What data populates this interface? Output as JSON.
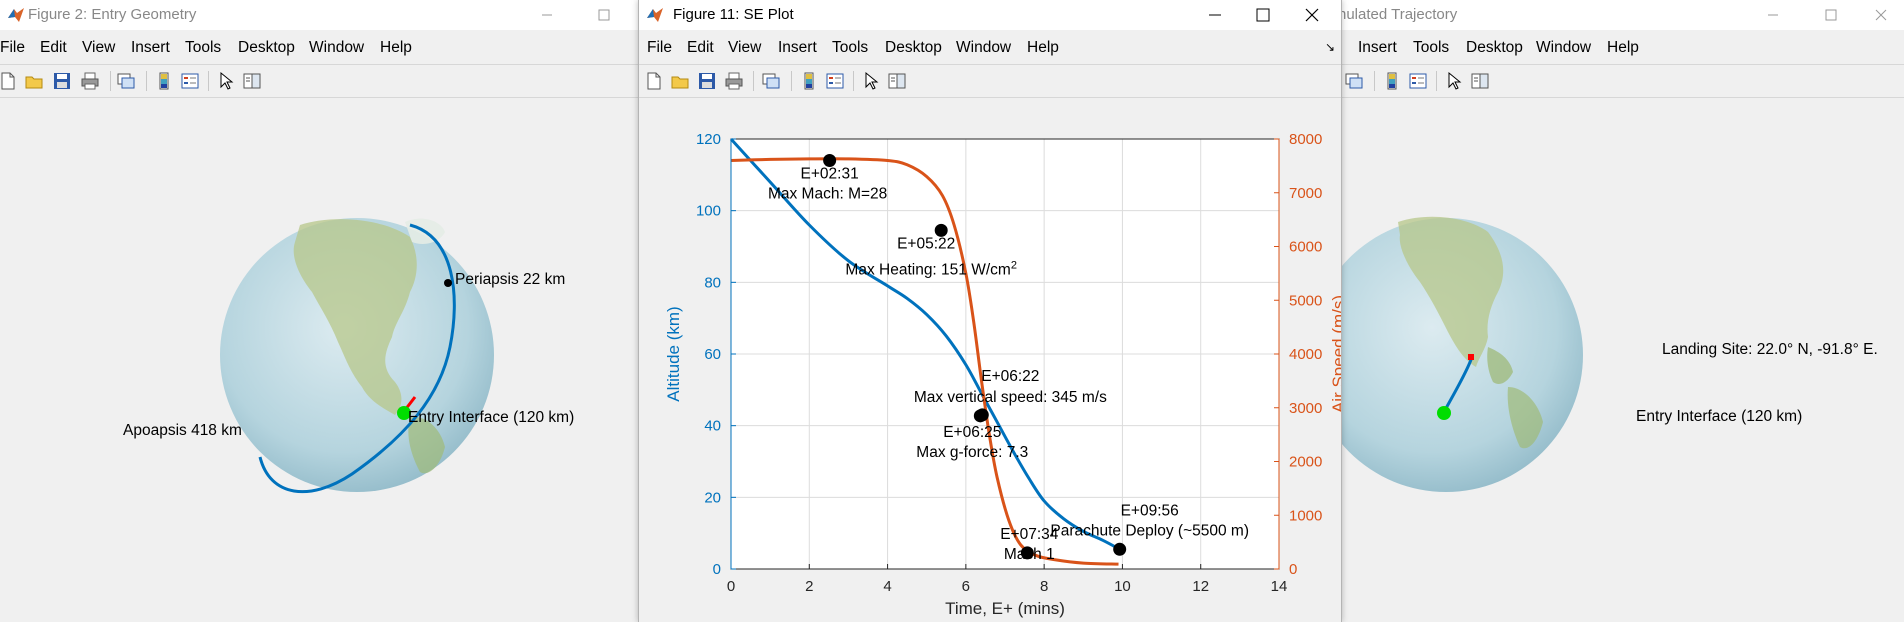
{
  "windows": {
    "left": {
      "title": "Figure 2: Entry Geometry",
      "menu": [
        "File",
        "Edit",
        "View",
        "Insert",
        "Tools",
        "Desktop",
        "Window",
        "Help"
      ],
      "annotations": {
        "periapsis": "Periapsis 22 km",
        "apoapsis": "Apoapsis 418 km",
        "entry_interface": "Entry Interface (120 km)"
      }
    },
    "center": {
      "title": "Figure 11: SE Plot",
      "menu": [
        "File",
        "Edit",
        "View",
        "Insert",
        "Tools",
        "Desktop",
        "Window",
        "Help"
      ],
      "dock_arrow": "↘"
    },
    "right": {
      "title": "nulated Trajectory",
      "menu": [
        "Insert",
        "Tools",
        "Desktop",
        "Window",
        "Help"
      ],
      "annotations": {
        "landing_site": "Landing Site: 22.0° N, -91.8° E.",
        "entry_interface": "Entry Interface (120 km)"
      }
    }
  },
  "icons": [
    "matlab-logo-icon",
    "minimize-icon",
    "maximize-icon",
    "close-icon",
    "new-figure-icon",
    "open-file-icon",
    "save-icon",
    "print-icon",
    "link-plot-icon",
    "colorbar-icon",
    "legend-icon",
    "pointer-icon",
    "property-editor-icon"
  ],
  "colors": {
    "altitude_series": "#0072bd",
    "airspeed_series": "#d95319",
    "entry_point": "#00dd00",
    "landing_point": "#ff0000",
    "event_marker": "#000000"
  },
  "chart_data": {
    "type": "line",
    "xlabel": "Time, E+ (mins)",
    "ylabel_left": "Altitude (km)",
    "ylabel_right": "Air Speed (m/s)",
    "xlim": [
      0,
      14
    ],
    "ylim_left": [
      0,
      120
    ],
    "ylim_right": [
      0,
      8000
    ],
    "xticks": [
      0,
      2,
      4,
      6,
      8,
      10,
      12,
      14
    ],
    "yticks_left": [
      0,
      20,
      40,
      60,
      80,
      100,
      120
    ],
    "yticks_right": [
      0,
      1000,
      2000,
      3000,
      4000,
      5000,
      6000,
      7000,
      8000
    ],
    "grid": true,
    "series": [
      {
        "axis": "left",
        "x": [
          0,
          1,
          2,
          3,
          4,
          4.5,
          5,
          5.5,
          6,
          6.4,
          6.8,
          7.2,
          7.6,
          8,
          8.5,
          9,
          9.5,
          9.93
        ],
        "values": [
          120,
          108,
          96,
          86,
          79,
          75.5,
          71,
          65,
          57,
          49,
          41,
          33,
          25.5,
          19,
          14,
          10.5,
          8,
          5.5
        ]
      },
      {
        "axis": "right",
        "x": [
          0,
          1,
          2,
          3,
          4,
          4.5,
          5,
          5.4,
          5.7,
          6,
          6.2,
          6.4,
          6.6,
          6.8,
          7.1,
          7.4,
          7.8,
          8.3,
          9,
          9.9
        ],
        "values": [
          7600,
          7620,
          7630,
          7630,
          7600,
          7520,
          7300,
          6950,
          6400,
          5500,
          4600,
          3500,
          2500,
          1700,
          900,
          450,
          250,
          170,
          110,
          90
        ]
      }
    ],
    "events": [
      {
        "x": 2.52,
        "axis": "right",
        "y": 7600,
        "label": "E+02:31",
        "sublabel": "Max Mach: M=28"
      },
      {
        "x": 5.37,
        "axis": "right",
        "y": 6300,
        "label": "E+05:22",
        "sublabel": "Max Heating: 151 W/cm",
        "superscript": "2"
      },
      {
        "x": 6.37,
        "axis": "right",
        "y": 2850,
        "label": "E+06:22",
        "sublabel": "Max vertical speed: 345 m/s"
      },
      {
        "x": 6.42,
        "axis": "left",
        "y": 43,
        "label": "E+06:25",
        "sublabel": "Max g-force: 7.3"
      },
      {
        "x": 7.57,
        "axis": "right",
        "y": 300,
        "label": "E+07:34",
        "sublabel": "Mach 1"
      },
      {
        "x": 9.93,
        "axis": "left",
        "y": 5.5,
        "label": "E+09:56",
        "sublabel": "Parachute Deploy (~5500 m)"
      }
    ]
  }
}
